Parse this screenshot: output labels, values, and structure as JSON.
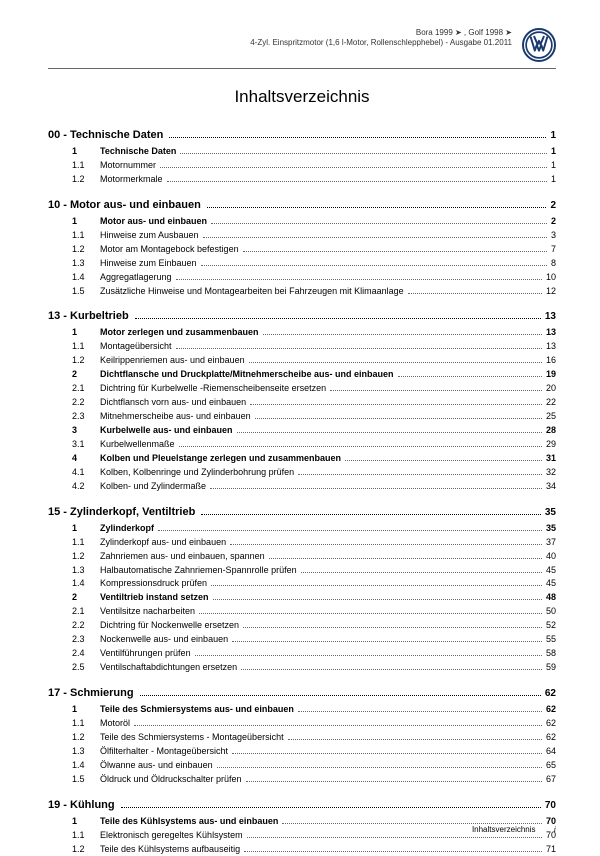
{
  "header": {
    "line1": "Bora 1999 ➤ , Golf 1998 ➤",
    "line2": "4-Zyl. Einspritzmotor (1,6 l-Motor, Rollenschlepphebel) - Ausgabe 01.2011"
  },
  "title": "Inhaltsverzeichnis",
  "sections": [
    {
      "head": "00 - Technische Daten",
      "page": "1",
      "entries": [
        {
          "num": "1",
          "txt": "Technische Daten",
          "page": "1",
          "bold": true
        },
        {
          "num": "1.1",
          "txt": "Motornummer",
          "page": "1"
        },
        {
          "num": "1.2",
          "txt": "Motormerkmale",
          "page": "1"
        }
      ]
    },
    {
      "head": "10 - Motor aus- und einbauen",
      "page": "2",
      "entries": [
        {
          "num": "1",
          "txt": "Motor aus- und einbauen",
          "page": "2",
          "bold": true
        },
        {
          "num": "1.1",
          "txt": "Hinweise zum Ausbauen",
          "page": "3"
        },
        {
          "num": "1.2",
          "txt": "Motor am Montagebock befestigen",
          "page": "7"
        },
        {
          "num": "1.3",
          "txt": "Hinweise zum Einbauen",
          "page": "8"
        },
        {
          "num": "1.4",
          "txt": "Aggregatlagerung",
          "page": "10"
        },
        {
          "num": "1.5",
          "txt": "Zusätzliche Hinweise und Montagearbeiten bei Fahrzeugen mit Klimaanlage",
          "page": "12"
        }
      ]
    },
    {
      "head": "13 - Kurbeltrieb",
      "page": "13",
      "entries": [
        {
          "num": "1",
          "txt": "Motor zerlegen und zusammenbauen",
          "page": "13",
          "bold": true
        },
        {
          "num": "1.1",
          "txt": "Montageübersicht",
          "page": "13"
        },
        {
          "num": "1.2",
          "txt": "Keilrippenriemen aus- und einbauen",
          "page": "16"
        },
        {
          "num": "2",
          "txt": "Dichtflansche und Druckplatte/Mitnehmerscheibe aus- und einbauen",
          "page": "19",
          "bold": true
        },
        {
          "num": "2.1",
          "txt": "Dichtring für Kurbelwelle -Riemenscheibenseite ersetzen",
          "page": "20"
        },
        {
          "num": "2.2",
          "txt": "Dichtflansch vorn aus- und einbauen",
          "page": "22"
        },
        {
          "num": "2.3",
          "txt": "Mitnehmerscheibe aus- und einbauen",
          "page": "25"
        },
        {
          "num": "3",
          "txt": "Kurbelwelle aus- und einbauen",
          "page": "28",
          "bold": true
        },
        {
          "num": "3.1",
          "txt": "Kurbelwellenmaße",
          "page": "29"
        },
        {
          "num": "4",
          "txt": "Kolben und Pleuelstange zerlegen und zusammenbauen",
          "page": "31",
          "bold": true
        },
        {
          "num": "4.1",
          "txt": "Kolben, Kolbenringe und Zylinderbohrung prüfen",
          "page": "32"
        },
        {
          "num": "4.2",
          "txt": "Kolben- und Zylindermaße",
          "page": "34"
        }
      ]
    },
    {
      "head": "15 - Zylinderkopf, Ventiltrieb",
      "page": "35",
      "entries": [
        {
          "num": "1",
          "txt": "Zylinderkopf",
          "page": "35",
          "bold": true
        },
        {
          "num": "1.1",
          "txt": "Zylinderkopf aus- und einbauen",
          "page": "37"
        },
        {
          "num": "1.2",
          "txt": "Zahnriemen aus- und einbauen, spannen",
          "page": "40"
        },
        {
          "num": "1.3",
          "txt": "Halbautomatische Zahnriemen-Spannrolle prüfen",
          "page": "45"
        },
        {
          "num": "1.4",
          "txt": "Kompressionsdruck prüfen",
          "page": "45"
        },
        {
          "num": "2",
          "txt": "Ventiltrieb instand setzen",
          "page": "48",
          "bold": true
        },
        {
          "num": "2.1",
          "txt": "Ventilsitze nacharbeiten",
          "page": "50"
        },
        {
          "num": "2.2",
          "txt": "Dichtring für Nockenwelle ersetzen",
          "page": "52"
        },
        {
          "num": "2.3",
          "txt": "Nockenwelle aus- und einbauen",
          "page": "55"
        },
        {
          "num": "2.4",
          "txt": "Ventilführungen prüfen",
          "page": "58"
        },
        {
          "num": "2.5",
          "txt": "Ventilschaftabdichtungen ersetzen",
          "page": "59"
        }
      ]
    },
    {
      "head": "17 - Schmierung",
      "page": "62",
      "entries": [
        {
          "num": "1",
          "txt": "Teile des Schmiersystems aus- und einbauen",
          "page": "62",
          "bold": true
        },
        {
          "num": "1.1",
          "txt": "Motoröl",
          "page": "62"
        },
        {
          "num": "1.2",
          "txt": "Teile des Schmiersystems - Montageübersicht",
          "page": "62"
        },
        {
          "num": "1.3",
          "txt": "Ölfilterhalter - Montageübersicht",
          "page": "64"
        },
        {
          "num": "1.4",
          "txt": "Ölwanne aus- und einbauen",
          "page": "65"
        },
        {
          "num": "1.5",
          "txt": "Öldruck und Öldruckschalter prüfen",
          "page": "67"
        }
      ]
    },
    {
      "head": "19 - Kühlung",
      "page": "70",
      "entries": [
        {
          "num": "1",
          "txt": "Teile des Kühlsystems aus- und einbauen",
          "page": "70",
          "bold": true
        },
        {
          "num": "1.1",
          "txt": "Elektronisch geregeltes Kühlsystem",
          "page": "70"
        },
        {
          "num": "1.2",
          "txt": "Teile des Kühlsystems aufbauseitig",
          "page": "71"
        }
      ]
    }
  ],
  "footer": {
    "label": "Inhaltsverzeichnis",
    "pagenum": "i"
  },
  "colors": {
    "text": "#000000",
    "rule": "#666666",
    "logo": "#1a3a6e"
  }
}
